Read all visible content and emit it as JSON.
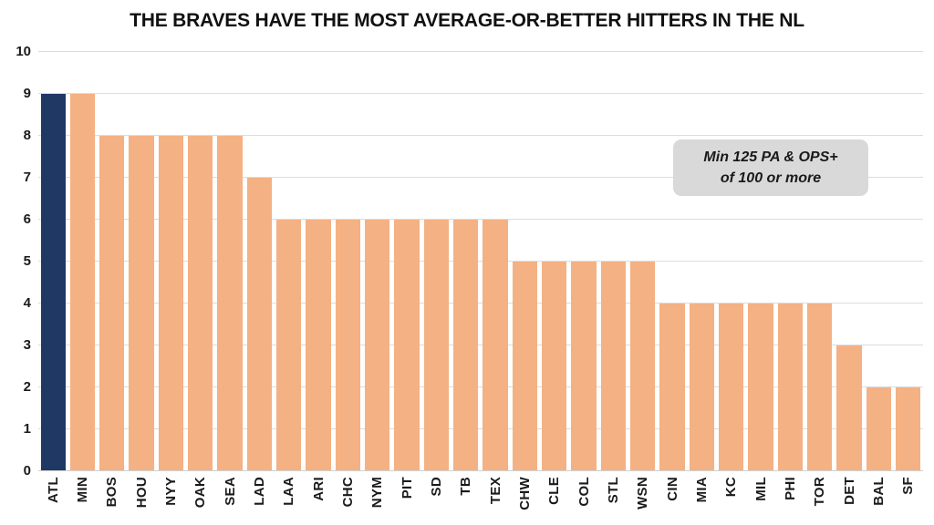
{
  "title": "THE BRAVES HAVE THE MOST AVERAGE-OR-BETTER HITTERS IN THE NL",
  "annotation": {
    "line1": "Min 125 PA & OPS+",
    "line2": "of 100 or more"
  },
  "chart_data": {
    "type": "bar",
    "title": "THE BRAVES HAVE THE MOST AVERAGE-OR-BETTER HITTERS IN THE NL",
    "categories": [
      "ATL",
      "MIN",
      "BOS",
      "HOU",
      "NYY",
      "OAK",
      "SEA",
      "LAD",
      "LAA",
      "ARI",
      "CHC",
      "NYM",
      "PIT",
      "SD",
      "TB",
      "TEX",
      "CHW",
      "CLE",
      "COL",
      "STL",
      "WSN",
      "CIN",
      "MIA",
      "KC",
      "MIL",
      "PHI",
      "TOR",
      "DET",
      "BAL",
      "SF"
    ],
    "values": [
      9,
      9,
      8,
      8,
      8,
      8,
      8,
      7,
      6,
      6,
      6,
      6,
      6,
      6,
      6,
      6,
      5,
      5,
      5,
      5,
      5,
      4,
      4,
      4,
      4,
      4,
      4,
      3,
      2,
      2
    ],
    "highlight_category": "ATL",
    "xlabel": "",
    "ylabel": "",
    "ylim": [
      0,
      10
    ],
    "yticks": [
      0,
      1,
      2,
      3,
      4,
      5,
      6,
      7,
      8,
      9,
      10
    ],
    "grid": true,
    "legend": false,
    "colors": {
      "bar_default": "#F4B183",
      "bar_highlight": "#1F3864",
      "gridline": "#DCDCDC",
      "axis_text": "#1A1A1A",
      "annotation_bg": "#D9D9D9"
    }
  }
}
